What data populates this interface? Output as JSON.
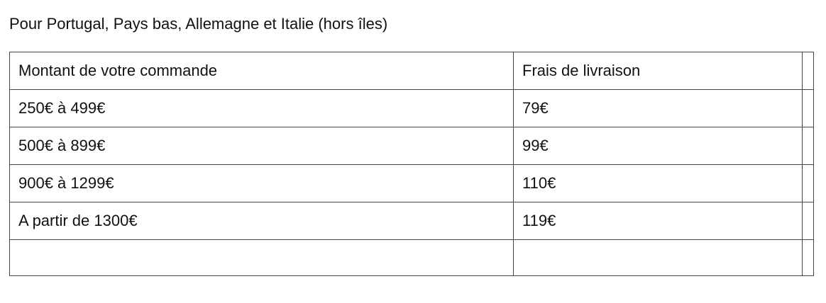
{
  "title": "Pour Portugal, Pays bas, Allemagne et Italie (hors îles)",
  "table": {
    "headers": [
      "Montant de votre commande",
      "Frais de livraison",
      ""
    ],
    "rows": [
      [
        "250€ à 499€",
        "79€",
        ""
      ],
      [
        "500€ à 899€",
        "99€",
        ""
      ],
      [
        "900€ à 1299€",
        "110€",
        ""
      ],
      [
        "A partir de 1300€",
        "119€",
        ""
      ],
      [
        "",
        "",
        ""
      ]
    ]
  }
}
